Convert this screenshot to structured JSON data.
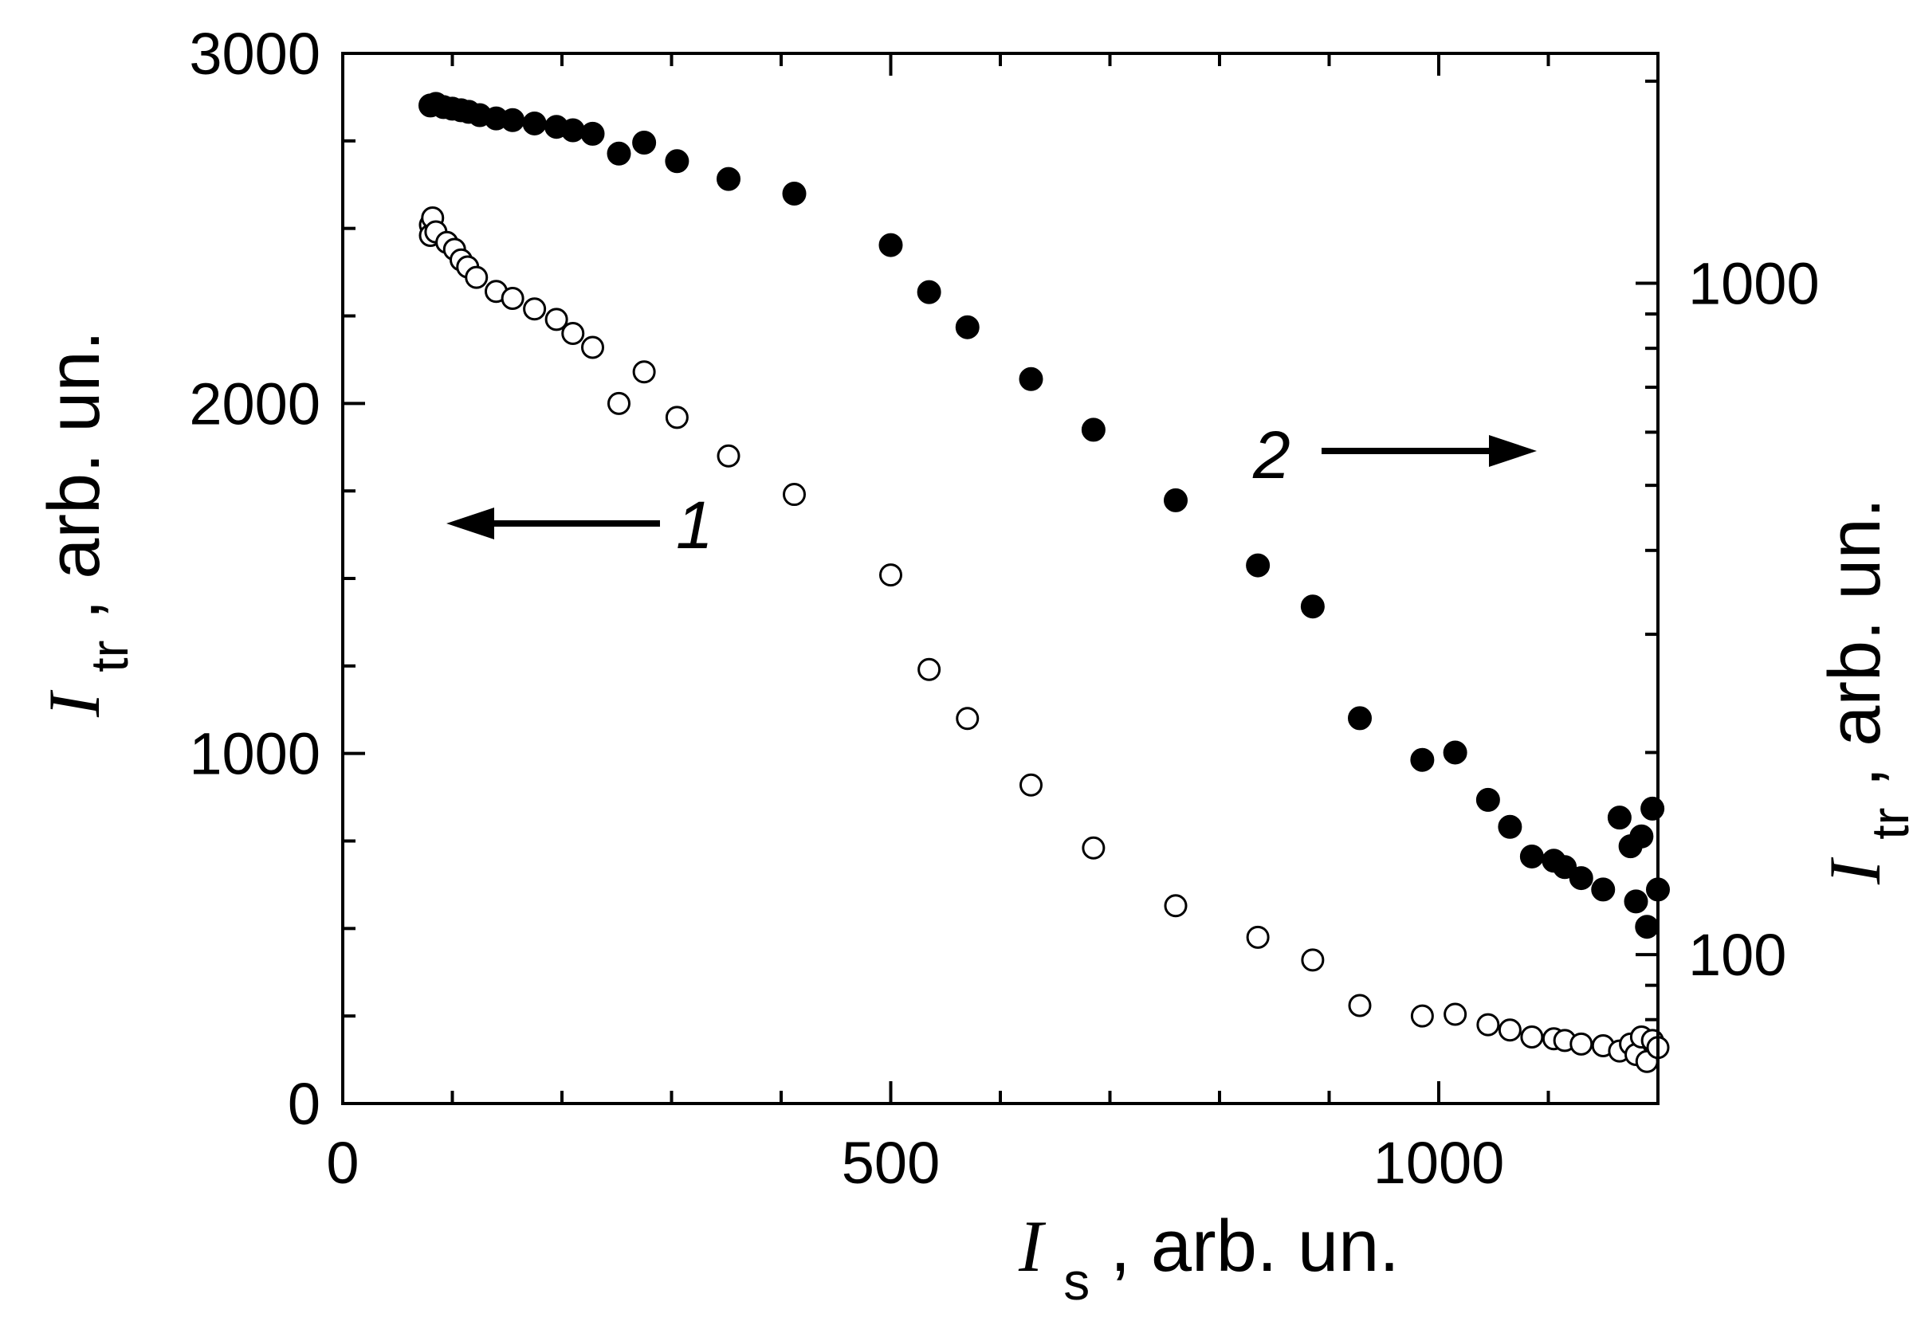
{
  "chart_data": {
    "type": "scatter",
    "title": "",
    "x_axis": {
      "symbol": "I",
      "subscript": "s",
      "unit": ", arb. un.",
      "range": [
        0,
        1200
      ],
      "ticks": [
        0,
        500,
        1000
      ],
      "tick_labels": [
        "0",
        "500",
        "1000"
      ]
    },
    "y_left_axis": {
      "symbol": "I",
      "subscript": "tr",
      "unit": ", arb. un.",
      "range": [
        0,
        3000
      ],
      "scale": "linear",
      "ticks": [
        0,
        1000,
        2000,
        3000
      ],
      "tick_labels": [
        "0",
        "1000",
        "2000",
        "3000"
      ]
    },
    "y_right_axis": {
      "symbol": "I",
      "subscript": "tr",
      "unit": ", arb. un.",
      "range": [
        60,
        2200
      ],
      "scale": "log",
      "ticks": [
        100,
        1000
      ],
      "tick_labels": [
        "100",
        "1000"
      ]
    },
    "grid": false,
    "series": [
      {
        "label": "1",
        "axis": "left",
        "marker": "open-circle",
        "x": [
          80,
          80,
          82,
          85,
          95,
          102,
          108,
          114,
          122,
          140,
          155,
          175,
          195,
          210,
          228,
          252,
          275,
          305,
          352,
          412,
          500,
          535,
          570,
          628,
          685,
          760,
          835,
          885,
          928,
          985,
          1015,
          1045,
          1065,
          1085,
          1105,
          1115,
          1130,
          1150,
          1165,
          1175,
          1180,
          1185,
          1190,
          1195,
          1200
        ],
        "y": [
          2510,
          2480,
          2530,
          2490,
          2460,
          2440,
          2410,
          2390,
          2360,
          2320,
          2300,
          2270,
          2240,
          2200,
          2160,
          2000,
          2090,
          1960,
          1850,
          1740,
          1510,
          1240,
          1100,
          910,
          730,
          565,
          475,
          410,
          280,
          250,
          255,
          225,
          210,
          190,
          185,
          180,
          170,
          165,
          150,
          170,
          140,
          190,
          120,
          180,
          160
        ]
      },
      {
        "label": "2",
        "axis": "right",
        "marker": "filled-circle",
        "x": [
          80,
          85,
          92,
          100,
          108,
          115,
          125,
          140,
          155,
          175,
          195,
          210,
          228,
          252,
          275,
          305,
          352,
          412,
          500,
          535,
          570,
          628,
          685,
          760,
          835,
          885,
          928,
          985,
          1015,
          1045,
          1065,
          1085,
          1105,
          1115,
          1130,
          1150,
          1165,
          1175,
          1180,
          1185,
          1190,
          1195,
          1200
        ],
        "y": [
          1840,
          1850,
          1830,
          1820,
          1810,
          1800,
          1780,
          1760,
          1750,
          1730,
          1710,
          1690,
          1670,
          1560,
          1620,
          1520,
          1430,
          1360,
          1140,
          970,
          860,
          720,
          605,
          475,
          380,
          330,
          225,
          195,
          200,
          170,
          155,
          140,
          138,
          135,
          130,
          125,
          160,
          145,
          120,
          150,
          110,
          165,
          125
        ]
      }
    ],
    "annotations": [
      {
        "text": "1",
        "arrow_direction": "left",
        "refers_to_axis": "left"
      },
      {
        "text": "2",
        "arrow_direction": "right",
        "refers_to_axis": "right"
      }
    ]
  }
}
